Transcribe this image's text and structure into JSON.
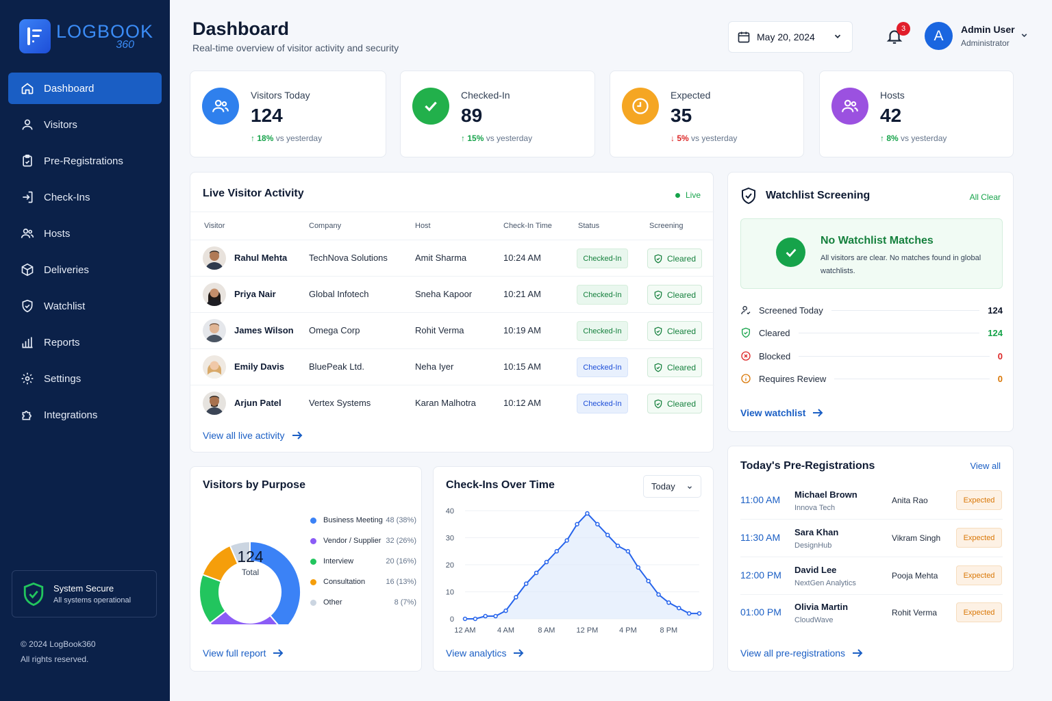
{
  "brand": {
    "name": "LOGBOOK",
    "suffix": "360"
  },
  "sidebar": {
    "items": [
      {
        "label": "Dashboard",
        "icon": "home-icon",
        "active": true
      },
      {
        "label": "Visitors",
        "icon": "user-icon"
      },
      {
        "label": "Pre-Registrations",
        "icon": "clipboard-icon"
      },
      {
        "label": "Check-Ins",
        "icon": "sign-in-icon"
      },
      {
        "label": "Hosts",
        "icon": "users-icon"
      },
      {
        "label": "Deliveries",
        "icon": "package-icon"
      },
      {
        "label": "Watchlist",
        "icon": "shield-icon"
      },
      {
        "label": "Reports",
        "icon": "bar-chart-icon"
      },
      {
        "label": "Settings",
        "icon": "gear-icon"
      },
      {
        "label": "Integrations",
        "icon": "puzzle-icon"
      }
    ],
    "status": {
      "title": "System Secure",
      "text": "All systems operational"
    },
    "copyright": "© 2024 LogBook360",
    "rights": "All rights reserved."
  },
  "header": {
    "title": "Dashboard",
    "subtitle": "Real-time overview of visitor activity and security",
    "date": "May 20, 2024",
    "notifications": "3",
    "user": {
      "initial": "A",
      "name": "Admin User",
      "role": "Administrator"
    }
  },
  "stats": [
    {
      "label": "Visitors Today",
      "value": "124",
      "delta": "18%",
      "direction": "up",
      "note": "vs yesterday",
      "color": "#2f80ed"
    },
    {
      "label": "Checked-In",
      "value": "89",
      "delta": "15%",
      "direction": "up",
      "note": "vs yesterday",
      "color": "#22b04b"
    },
    {
      "label": "Expected",
      "value": "35",
      "delta": "5%",
      "direction": "down",
      "note": "vs yesterday",
      "color": "#f5a623"
    },
    {
      "label": "Hosts",
      "value": "42",
      "delta": "8%",
      "direction": "up",
      "note": "vs yesterday",
      "color": "#9b51e0"
    }
  ],
  "live": {
    "title": "Live Visitor Activity",
    "badge": "Live",
    "columns": [
      "Visitor",
      "Company",
      "Host",
      "Check-In Time",
      "Status",
      "Screening"
    ],
    "rows": [
      {
        "visitor": "Rahul Mehta",
        "company": "TechNova Solutions",
        "host": "Amit Sharma",
        "time": "10:24 AM",
        "status": "Checked-In",
        "status_tone": "green",
        "screening": "Cleared"
      },
      {
        "visitor": "Priya Nair",
        "company": "Global Infotech",
        "host": "Sneha Kapoor",
        "time": "10:21 AM",
        "status": "Checked-In",
        "status_tone": "green",
        "screening": "Cleared"
      },
      {
        "visitor": "James Wilson",
        "company": "Omega Corp",
        "host": "Rohit Verma",
        "time": "10:19 AM",
        "status": "Checked-In",
        "status_tone": "green",
        "screening": "Cleared"
      },
      {
        "visitor": "Emily Davis",
        "company": "BluePeak Ltd.",
        "host": "Neha Iyer",
        "time": "10:15 AM",
        "status": "Checked-In",
        "status_tone": "blue",
        "screening": "Cleared"
      },
      {
        "visitor": "Arjun Patel",
        "company": "Vertex Systems",
        "host": "Karan Malhotra",
        "time": "10:12 AM",
        "status": "Checked-In",
        "status_tone": "blue",
        "screening": "Cleared"
      }
    ],
    "link": "View all live activity"
  },
  "watchlist": {
    "title": "Watchlist Screening",
    "badge": "All Clear",
    "result_title": "No Watchlist Matches",
    "result_text": "All visitors are clear. No matches found in global watchlists.",
    "rows": [
      {
        "label": "Screened Today",
        "value": "124",
        "color": "#0f172a",
        "icon": "user-check-icon"
      },
      {
        "label": "Cleared",
        "value": "124",
        "color": "#16a34a",
        "icon": "shield-check-icon"
      },
      {
        "label": "Blocked",
        "value": "0",
        "color": "#dc2626",
        "icon": "x-circle-icon"
      },
      {
        "label": "Requires Review",
        "value": "0",
        "color": "#d97706",
        "icon": "info-circle-icon"
      }
    ],
    "link": "View watchlist"
  },
  "purpose": {
    "title": "Visitors by Purpose",
    "total": "124",
    "total_label": "Total",
    "items": [
      {
        "label": "Business Meeting",
        "value": "48 (38%)",
        "color": "#3b82f6"
      },
      {
        "label": "Vendor / Supplier",
        "value": "32 (26%)",
        "color": "#8b5cf6"
      },
      {
        "label": "Interview",
        "value": "20 (16%)",
        "color": "#22c55e"
      },
      {
        "label": "Consultation",
        "value": "16 (13%)",
        "color": "#f59e0b"
      },
      {
        "label": "Other",
        "value": "8 (7%)",
        "color": "#cbd5e1"
      }
    ],
    "link": "View full report"
  },
  "checkins": {
    "title": "Check-Ins Over Time",
    "range": "Today",
    "link": "View analytics"
  },
  "chart_data": [
    {
      "type": "pie",
      "title": "Visitors by Purpose",
      "categories": [
        "Business Meeting",
        "Vendor / Supplier",
        "Interview",
        "Consultation",
        "Other"
      ],
      "values": [
        48,
        32,
        20,
        16,
        8
      ]
    },
    {
      "type": "area",
      "title": "Check-Ins Over Time",
      "x_ticks": [
        "12 AM",
        "4 AM",
        "8 AM",
        "12 PM",
        "4 PM",
        "8 PM"
      ],
      "y_ticks": [
        0,
        10,
        20,
        30,
        40
      ],
      "ylim": [
        0,
        40
      ],
      "x": [
        0,
        1,
        2,
        3,
        4,
        5,
        6,
        7,
        8,
        9,
        10,
        11,
        12,
        13,
        14,
        15,
        16,
        17,
        18,
        19,
        20,
        21,
        22,
        23
      ],
      "values": [
        0,
        0,
        1,
        1,
        3,
        8,
        13,
        17,
        21,
        25,
        29,
        35,
        39,
        35,
        31,
        27,
        25,
        19,
        14,
        9,
        6,
        4,
        2,
        2
      ],
      "color": "#2563eb"
    }
  ],
  "preregs": {
    "title": "Today's Pre-Registrations",
    "view_all": "View all",
    "rows": [
      {
        "time": "11:00 AM",
        "name": "Michael Brown",
        "company": "Innova Tech",
        "host": "Anita Rao",
        "status": "Expected"
      },
      {
        "time": "11:30 AM",
        "name": "Sara Khan",
        "company": "DesignHub",
        "host": "Vikram Singh",
        "status": "Expected"
      },
      {
        "time": "12:00 PM",
        "name": "David Lee",
        "company": "NextGen Analytics",
        "host": "Pooja Mehta",
        "status": "Expected"
      },
      {
        "time": "01:00 PM",
        "name": "Olivia Martin",
        "company": "CloudWave",
        "host": "Rohit Verma",
        "status": "Expected"
      }
    ],
    "link": "View all pre-registrations"
  }
}
